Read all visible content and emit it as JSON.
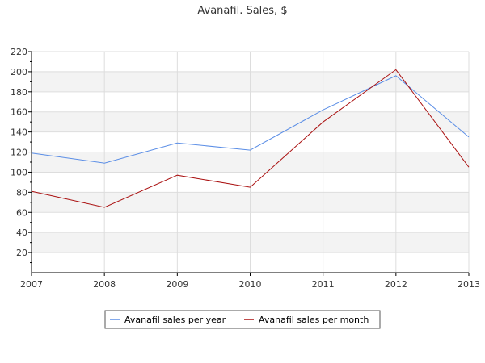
{
  "chart_data": {
    "type": "line",
    "title": "Avanafil. Sales, $",
    "x": [
      "2007",
      "2008",
      "2009",
      "2010",
      "2011",
      "2012",
      "2013"
    ],
    "xlim": [
      2007,
      2013
    ],
    "ylim": [
      0,
      220
    ],
    "y_ticks": [
      20,
      40,
      60,
      80,
      100,
      120,
      140,
      160,
      180,
      200,
      220
    ],
    "grid": true,
    "legend_position": "bottom",
    "series": [
      {
        "name": "Avanafil sales per year",
        "color": "#5b8ee6",
        "values": [
          119,
          109,
          129,
          122,
          162,
          196,
          135
        ]
      },
      {
        "name": "Avanafil sales per month",
        "color": "#aa1111",
        "values": [
          81,
          65,
          97,
          85,
          150,
          202,
          105
        ]
      }
    ],
    "colors": {
      "band": "#f3f3f3",
      "grid": "#dddddd",
      "axis": "#000000"
    }
  }
}
